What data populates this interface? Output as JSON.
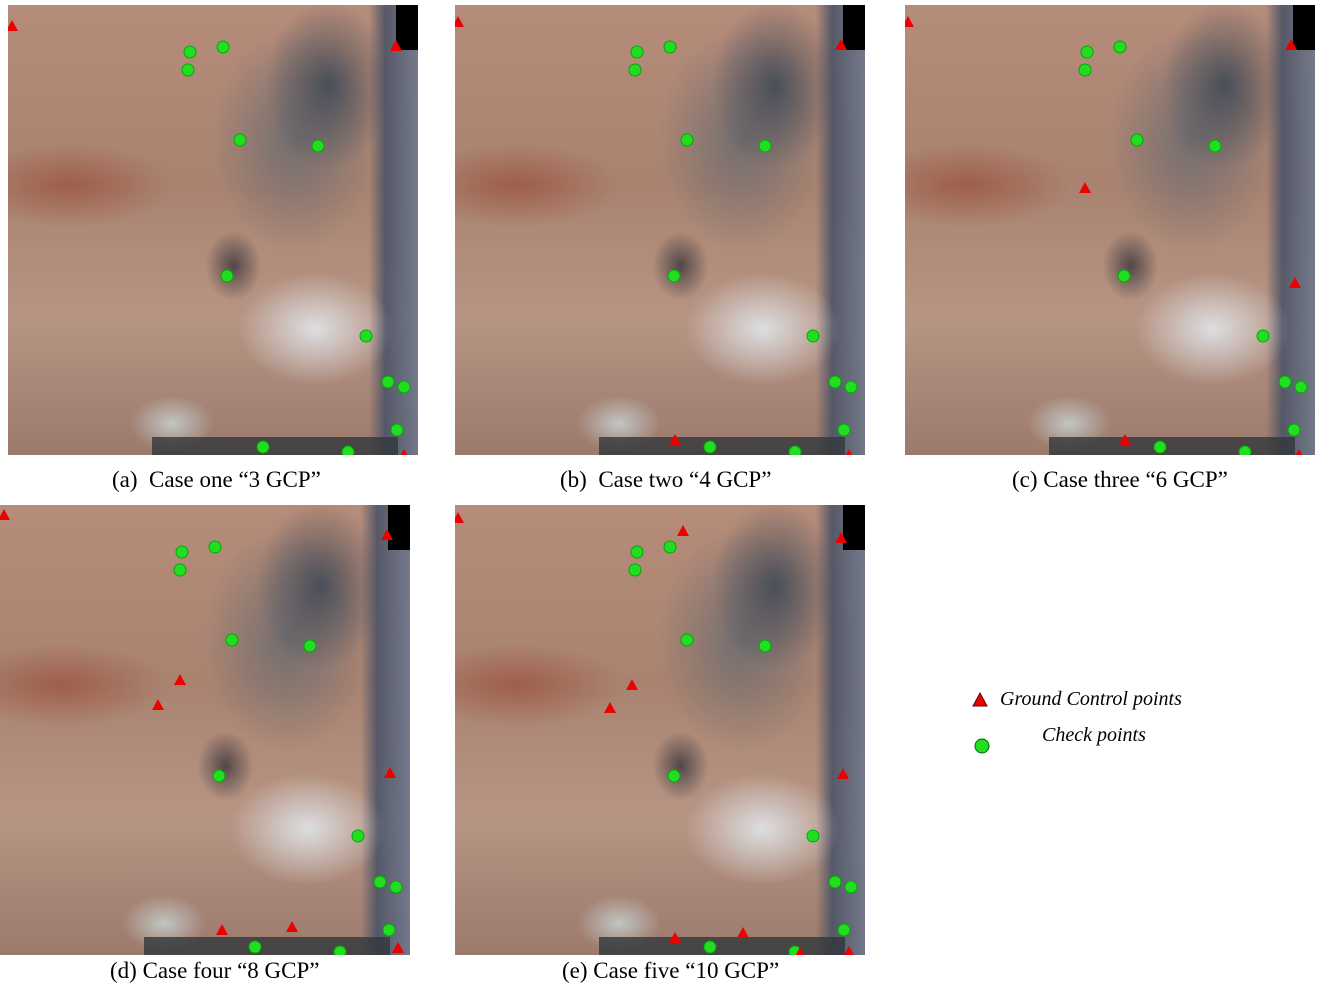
{
  "panels": [
    {
      "caption": "(a)  Case one “3 GCP”"
    },
    {
      "caption": "(b)  Case two “4 GCP”"
    },
    {
      "caption": "(c) Case three “6 GCP”"
    },
    {
      "caption": "(d) Case four “8 GCP”"
    },
    {
      "caption": "(e) Case five “10 GCP”"
    }
  ],
  "legend": {
    "gcp": "Ground Control points",
    "check": "Check points"
  }
}
